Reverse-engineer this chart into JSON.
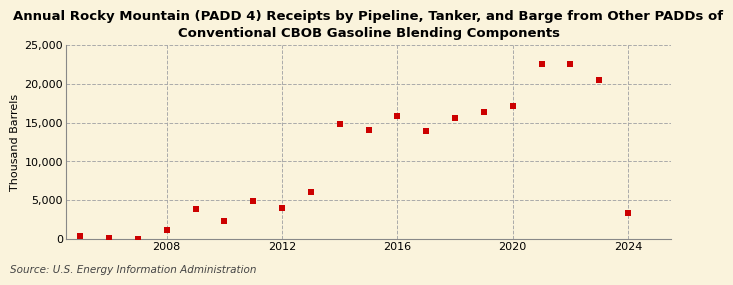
{
  "title": "Annual Rocky Mountain (PADD 4) Receipts by Pipeline, Tanker, and Barge from Other PADDs of\nConventional CBOB Gasoline Blending Components",
  "ylabel": "Thousand Barrels",
  "source": "Source: U.S. Energy Information Administration",
  "years": [
    2005,
    2006,
    2007,
    2008,
    2009,
    2010,
    2011,
    2012,
    2013,
    2014,
    2015,
    2016,
    2017,
    2018,
    2019,
    2020,
    2021,
    2022,
    2023,
    2024
  ],
  "values": [
    400,
    100,
    0,
    1100,
    3900,
    2300,
    4900,
    4000,
    6000,
    14800,
    14100,
    15800,
    13900,
    15600,
    16400,
    17100,
    22600,
    22600,
    20500,
    3300
  ],
  "marker_color": "#cc0000",
  "marker": "s",
  "marker_size": 4,
  "background_color": "#faf3dc",
  "grid_color": "#aaaaaa",
  "ylim": [
    0,
    25000
  ],
  "yticks": [
    0,
    5000,
    10000,
    15000,
    20000,
    25000
  ],
  "xticks": [
    2008,
    2012,
    2016,
    2020,
    2024
  ],
  "xlim": [
    2004.5,
    2025.5
  ],
  "title_fontsize": 9.5,
  "ylabel_fontsize": 8,
  "source_fontsize": 7.5,
  "tick_fontsize": 8
}
